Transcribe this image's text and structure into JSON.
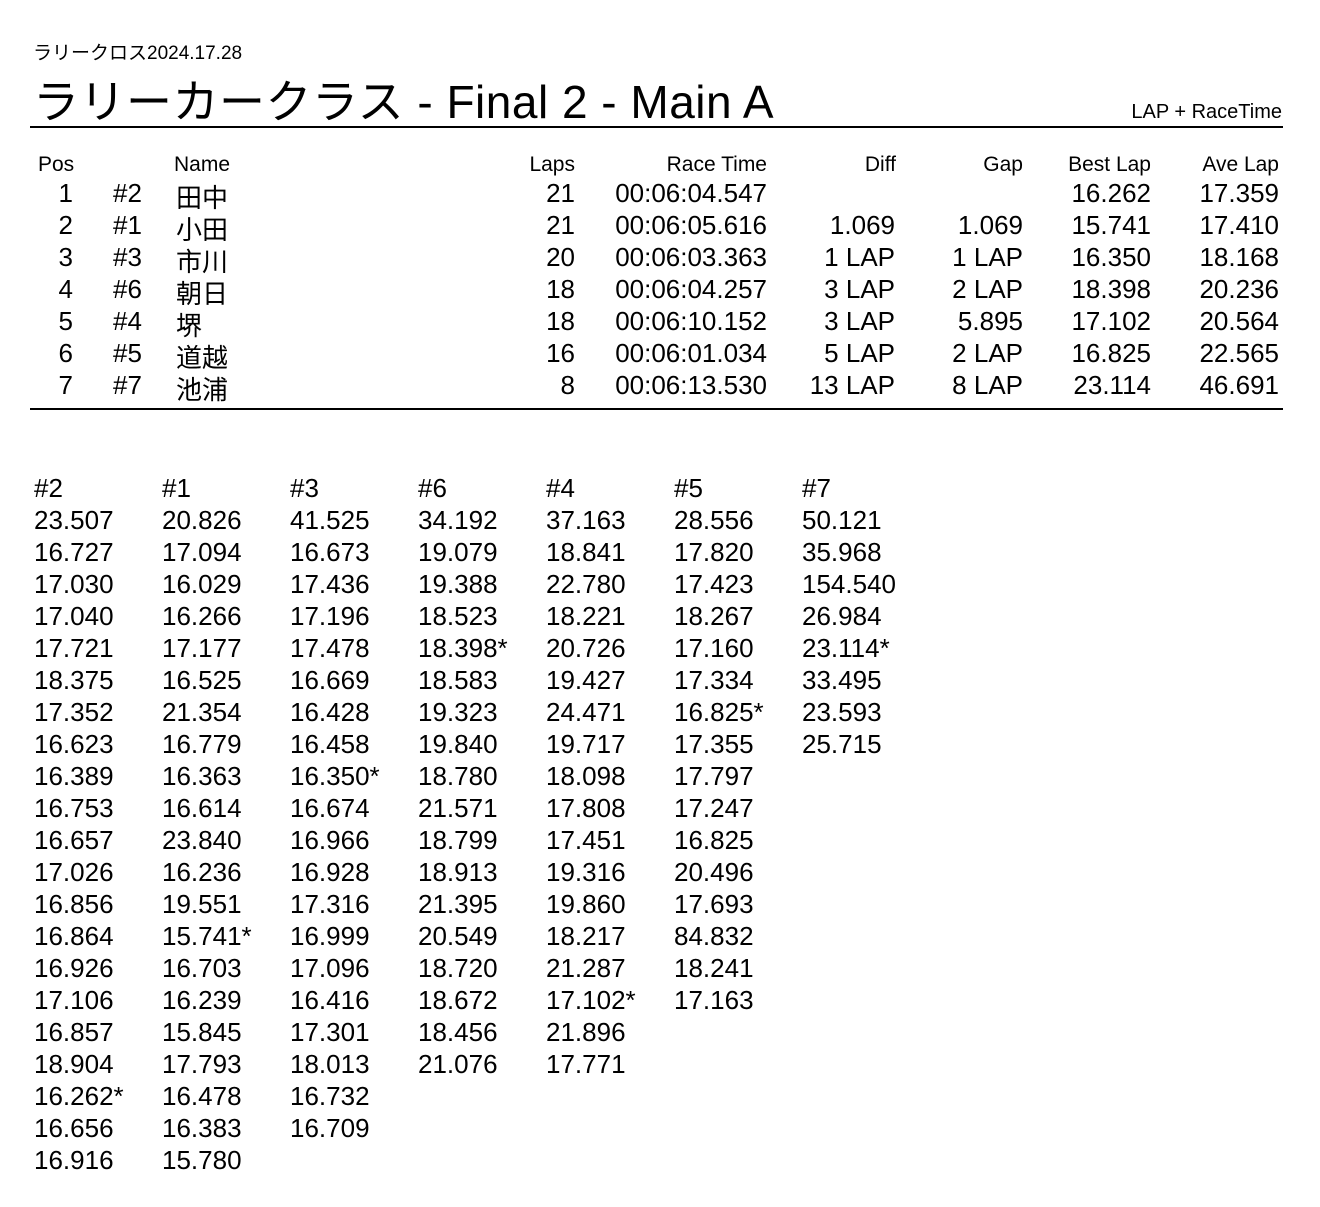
{
  "header": {
    "event": "ラリークロス2024.17.28",
    "title": "ラリーカークラス  -  Final 2  -  Main A",
    "mode": "LAP + RaceTime"
  },
  "results": {
    "columns": [
      "Pos",
      "Name",
      "Laps",
      "Race Time",
      "Diff",
      "Gap",
      "Best Lap",
      "Ave Lap"
    ],
    "rows": [
      {
        "pos": "1",
        "car": "#2",
        "name": "田中",
        "laps": "21",
        "race_time": "00:06:04.547",
        "diff": "",
        "gap": "",
        "best_lap": "16.262",
        "ave_lap": "17.359"
      },
      {
        "pos": "2",
        "car": "#1",
        "name": "小田",
        "laps": "21",
        "race_time": "00:06:05.616",
        "diff": "1.069",
        "gap": "1.069",
        "best_lap": "15.741",
        "ave_lap": "17.410"
      },
      {
        "pos": "3",
        "car": "#3",
        "name": "市川",
        "laps": "20",
        "race_time": "00:06:03.363",
        "diff": "1 LAP",
        "gap": "1 LAP",
        "best_lap": "16.350",
        "ave_lap": "18.168"
      },
      {
        "pos": "4",
        "car": "#6",
        "name": "朝日",
        "laps": "18",
        "race_time": "00:06:04.257",
        "diff": "3 LAP",
        "gap": "2 LAP",
        "best_lap": "18.398",
        "ave_lap": "20.236"
      },
      {
        "pos": "5",
        "car": "#4",
        "name": "堺",
        "laps": "18",
        "race_time": "00:06:10.152",
        "diff": "3 LAP",
        "gap": "5.895",
        "best_lap": "17.102",
        "ave_lap": "20.564"
      },
      {
        "pos": "6",
        "car": "#5",
        "name": "道越",
        "laps": "16",
        "race_time": "00:06:01.034",
        "diff": "5 LAP",
        "gap": "2 LAP",
        "best_lap": "16.825",
        "ave_lap": "22.565"
      },
      {
        "pos": "7",
        "car": "#7",
        "name": "池浦",
        "laps": "8",
        "race_time": "00:06:13.530",
        "diff": "13 LAP",
        "gap": "8 LAP",
        "best_lap": "23.114",
        "ave_lap": "46.691"
      }
    ]
  },
  "lap_times": [
    {
      "car": "#2",
      "laps": [
        "23.507",
        "16.727",
        "17.030",
        "17.040",
        "17.721",
        "18.375",
        "17.352",
        "16.623",
        "16.389",
        "16.753",
        "16.657",
        "17.026",
        "16.856",
        "16.864",
        "16.926",
        "17.106",
        "16.857",
        "18.904",
        "16.262*",
        "16.656",
        "16.916"
      ]
    },
    {
      "car": "#1",
      "laps": [
        "20.826",
        "17.094",
        "16.029",
        "16.266",
        "17.177",
        "16.525",
        "21.354",
        "16.779",
        "16.363",
        "16.614",
        "23.840",
        "16.236",
        "19.551",
        "15.741*",
        "16.703",
        "16.239",
        "15.845",
        "17.793",
        "16.478",
        "16.383",
        "15.780"
      ]
    },
    {
      "car": "#3",
      "laps": [
        "41.525",
        "16.673",
        "17.436",
        "17.196",
        "17.478",
        "16.669",
        "16.428",
        "16.458",
        "16.350*",
        "16.674",
        "16.966",
        "16.928",
        "17.316",
        "16.999",
        "17.096",
        "16.416",
        "17.301",
        "18.013",
        "16.732",
        "16.709"
      ]
    },
    {
      "car": "#6",
      "laps": [
        "34.192",
        "19.079",
        "19.388",
        "18.523",
        "18.398*",
        "18.583",
        "19.323",
        "19.840",
        "18.780",
        "21.571",
        "18.799",
        "18.913",
        "21.395",
        "20.549",
        "18.720",
        "18.672",
        "18.456",
        "21.076"
      ]
    },
    {
      "car": "#4",
      "laps": [
        "37.163",
        "18.841",
        "22.780",
        "18.221",
        "20.726",
        "19.427",
        "24.471",
        "19.717",
        "18.098",
        "17.808",
        "17.451",
        "19.316",
        "19.860",
        "18.217",
        "21.287",
        "17.102*",
        "21.896",
        "17.771"
      ]
    },
    {
      "car": "#5",
      "laps": [
        "28.556",
        "17.820",
        "17.423",
        "18.267",
        "17.160",
        "17.334",
        "16.825*",
        "17.355",
        "17.797",
        "17.247",
        "16.825",
        "20.496",
        "17.693",
        "84.832",
        "18.241",
        "17.163"
      ]
    },
    {
      "car": "#7",
      "laps": [
        "50.121",
        "35.968",
        "154.540",
        "26.984",
        "23.114*",
        "33.495",
        "23.593",
        "25.715"
      ]
    }
  ]
}
